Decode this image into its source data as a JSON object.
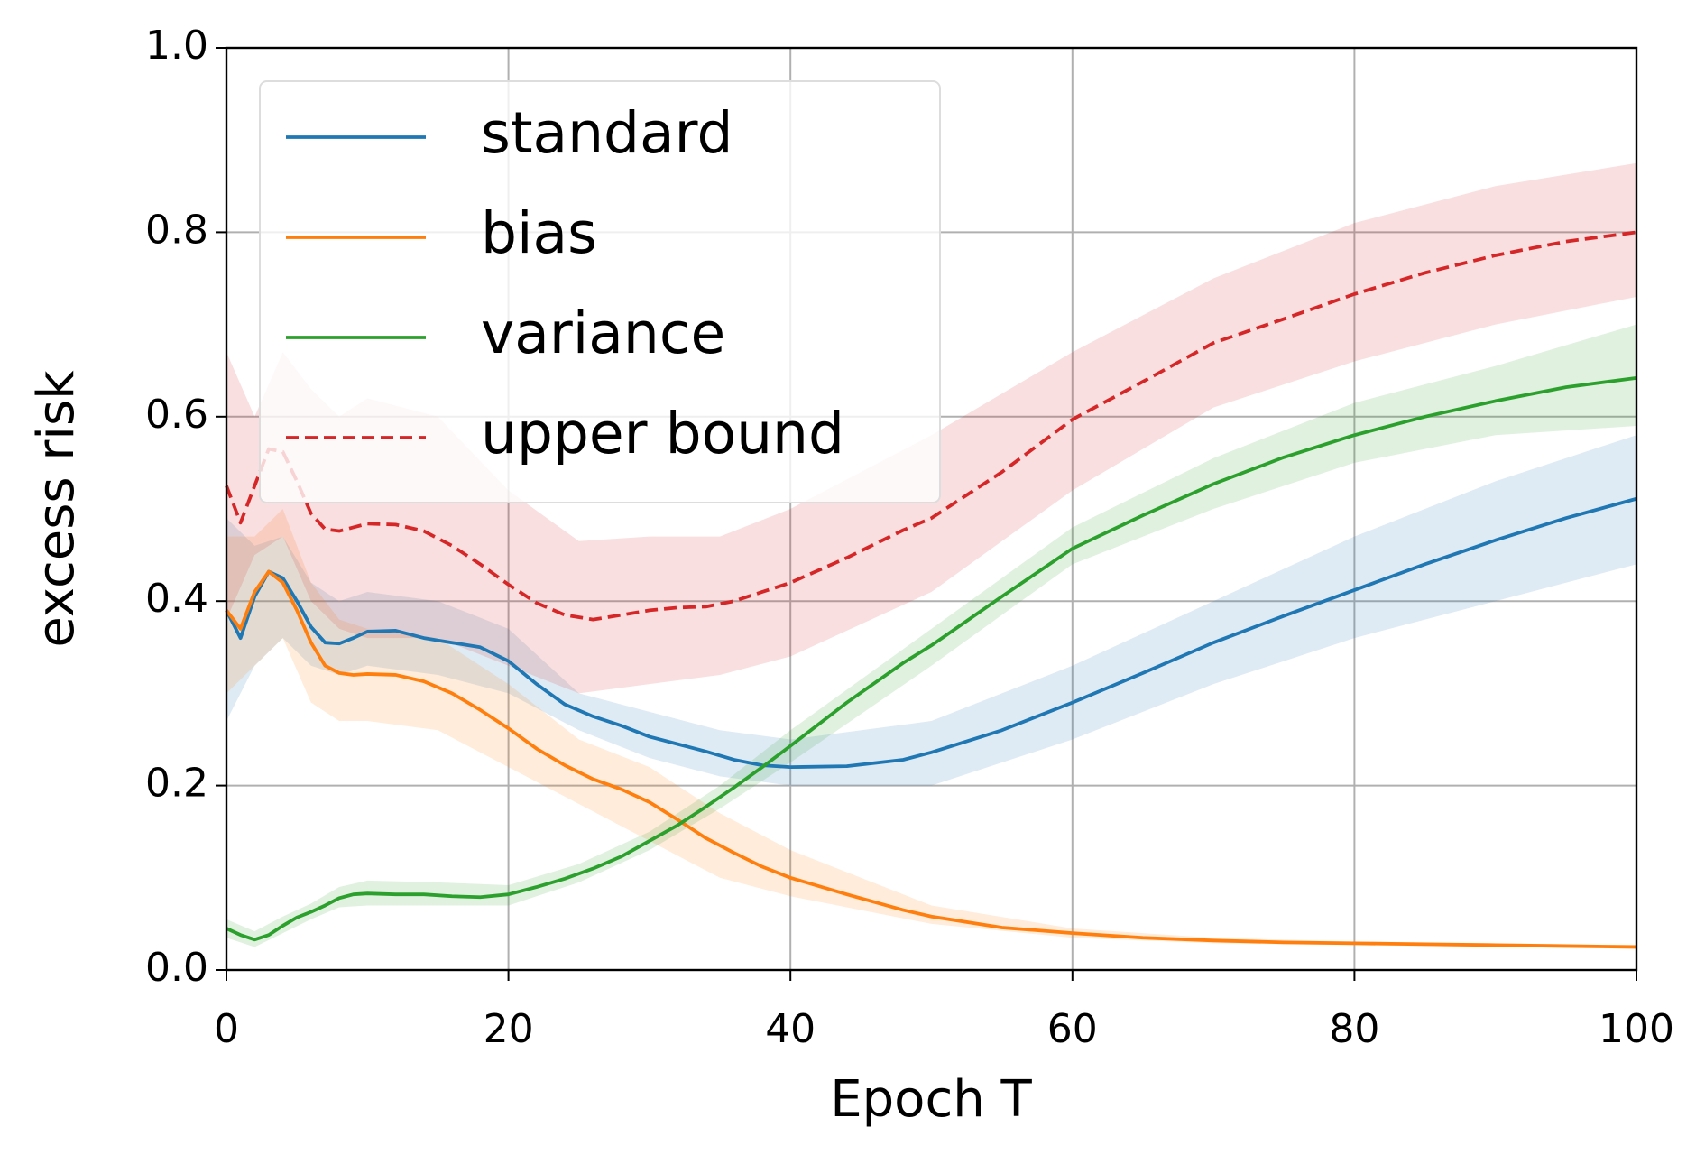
{
  "chart_data": {
    "type": "line",
    "xlabel": "Epoch T",
    "ylabel": "excess risk",
    "xlim": [
      0,
      100
    ],
    "ylim": [
      0,
      1
    ],
    "xticks": [
      0,
      20,
      40,
      60,
      80,
      100
    ],
    "yticks": [
      {
        "value": 0,
        "label": "0.0"
      },
      {
        "value": 0.2,
        "label": "0.2"
      },
      {
        "value": 0.4,
        "label": "0.4"
      },
      {
        "value": 0.6,
        "label": "0.6"
      },
      {
        "value": 0.8,
        "label": "0.8"
      },
      {
        "value": 1,
        "label": "1.0"
      }
    ],
    "grid": true,
    "legend": "upper left",
    "x": [
      0,
      1,
      2,
      3,
      4,
      5,
      6,
      7,
      8,
      9,
      10,
      12,
      14,
      16,
      18,
      20,
      22,
      24,
      26,
      28,
      30,
      32,
      34,
      36,
      38,
      40,
      44,
      48,
      50,
      55,
      60,
      65,
      70,
      75,
      80,
      85,
      90,
      95,
      100
    ],
    "band_x": [
      0,
      2,
      4,
      6,
      8,
      10,
      15,
      20,
      25,
      30,
      35,
      40,
      50,
      60,
      70,
      80,
      90,
      100
    ],
    "series": [
      {
        "name": "standard",
        "color": "#1f77b4",
        "dashed": false,
        "values": [
          0.39,
          0.36,
          0.405,
          0.432,
          0.425,
          0.4,
          0.372,
          0.355,
          0.354,
          0.36,
          0.367,
          0.368,
          0.36,
          0.355,
          0.35,
          0.335,
          0.31,
          0.288,
          0.275,
          0.265,
          0.253,
          0.245,
          0.237,
          0.228,
          0.222,
          0.22,
          0.221,
          0.228,
          0.236,
          0.26,
          0.29,
          0.322,
          0.355,
          0.384,
          0.412,
          0.44,
          0.466,
          0.49,
          0.511
        ],
        "band_lower": [
          0.27,
          0.33,
          0.36,
          0.33,
          0.32,
          0.33,
          0.32,
          0.3,
          0.26,
          0.23,
          0.21,
          0.2,
          0.2,
          0.25,
          0.31,
          0.36,
          0.4,
          0.44
        ],
        "band_upper": [
          0.49,
          0.46,
          0.47,
          0.42,
          0.4,
          0.41,
          0.4,
          0.37,
          0.3,
          0.28,
          0.26,
          0.25,
          0.27,
          0.33,
          0.4,
          0.47,
          0.53,
          0.58
        ]
      },
      {
        "name": "bias",
        "color": "#ff7f0e",
        "dashed": false,
        "values": [
          0.39,
          0.37,
          0.41,
          0.432,
          0.42,
          0.39,
          0.355,
          0.33,
          0.322,
          0.32,
          0.321,
          0.32,
          0.313,
          0.3,
          0.282,
          0.262,
          0.24,
          0.222,
          0.207,
          0.196,
          0.182,
          0.163,
          0.143,
          0.127,
          0.112,
          0.1,
          0.082,
          0.065,
          0.058,
          0.046,
          0.04,
          0.035,
          0.032,
          0.03,
          0.029,
          0.028,
          0.027,
          0.026,
          0.025
        ],
        "band_lower": [
          0.3,
          0.33,
          0.36,
          0.29,
          0.27,
          0.27,
          0.26,
          0.22,
          0.18,
          0.14,
          0.1,
          0.08,
          0.05,
          0.035,
          0.029,
          0.027,
          0.025,
          0.023
        ],
        "band_upper": [
          0.47,
          0.47,
          0.5,
          0.42,
          0.38,
          0.37,
          0.36,
          0.31,
          0.25,
          0.22,
          0.17,
          0.13,
          0.07,
          0.045,
          0.035,
          0.031,
          0.029,
          0.027
        ]
      },
      {
        "name": "variance",
        "color": "#2ca02c",
        "dashed": false,
        "values": [
          0.045,
          0.038,
          0.033,
          0.038,
          0.048,
          0.057,
          0.063,
          0.07,
          0.078,
          0.082,
          0.083,
          0.082,
          0.082,
          0.08,
          0.079,
          0.082,
          0.09,
          0.099,
          0.11,
          0.123,
          0.14,
          0.157,
          0.177,
          0.198,
          0.22,
          0.243,
          0.29,
          0.333,
          0.352,
          0.405,
          0.457,
          0.493,
          0.527,
          0.556,
          0.58,
          0.6,
          0.617,
          0.632,
          0.642
        ],
        "band_lower": [
          0.035,
          0.025,
          0.04,
          0.055,
          0.068,
          0.07,
          0.07,
          0.07,
          0.095,
          0.13,
          0.175,
          0.225,
          0.33,
          0.44,
          0.5,
          0.55,
          0.58,
          0.59
        ],
        "band_upper": [
          0.055,
          0.042,
          0.058,
          0.072,
          0.09,
          0.097,
          0.095,
          0.092,
          0.115,
          0.15,
          0.2,
          0.26,
          0.37,
          0.48,
          0.555,
          0.615,
          0.655,
          0.7
        ]
      },
      {
        "name": "upper bound",
        "color": "#d62728",
        "dashed": true,
        "values": [
          0.525,
          0.485,
          0.525,
          0.565,
          0.562,
          0.53,
          0.495,
          0.478,
          0.476,
          0.48,
          0.484,
          0.483,
          0.476,
          0.46,
          0.44,
          0.418,
          0.398,
          0.385,
          0.38,
          0.385,
          0.39,
          0.393,
          0.394,
          0.4,
          0.41,
          0.42,
          0.447,
          0.477,
          0.49,
          0.54,
          0.597,
          0.638,
          0.68,
          0.706,
          0.733,
          0.756,
          0.775,
          0.79,
          0.8
        ],
        "band_lower": [
          0.38,
          0.45,
          0.47,
          0.4,
          0.37,
          0.36,
          0.36,
          0.33,
          0.3,
          0.31,
          0.32,
          0.34,
          0.41,
          0.52,
          0.61,
          0.66,
          0.7,
          0.73
        ],
        "band_upper": [
          0.67,
          0.6,
          0.67,
          0.63,
          0.6,
          0.62,
          0.6,
          0.52,
          0.465,
          0.47,
          0.47,
          0.5,
          0.58,
          0.67,
          0.75,
          0.81,
          0.85,
          0.875
        ]
      }
    ]
  }
}
